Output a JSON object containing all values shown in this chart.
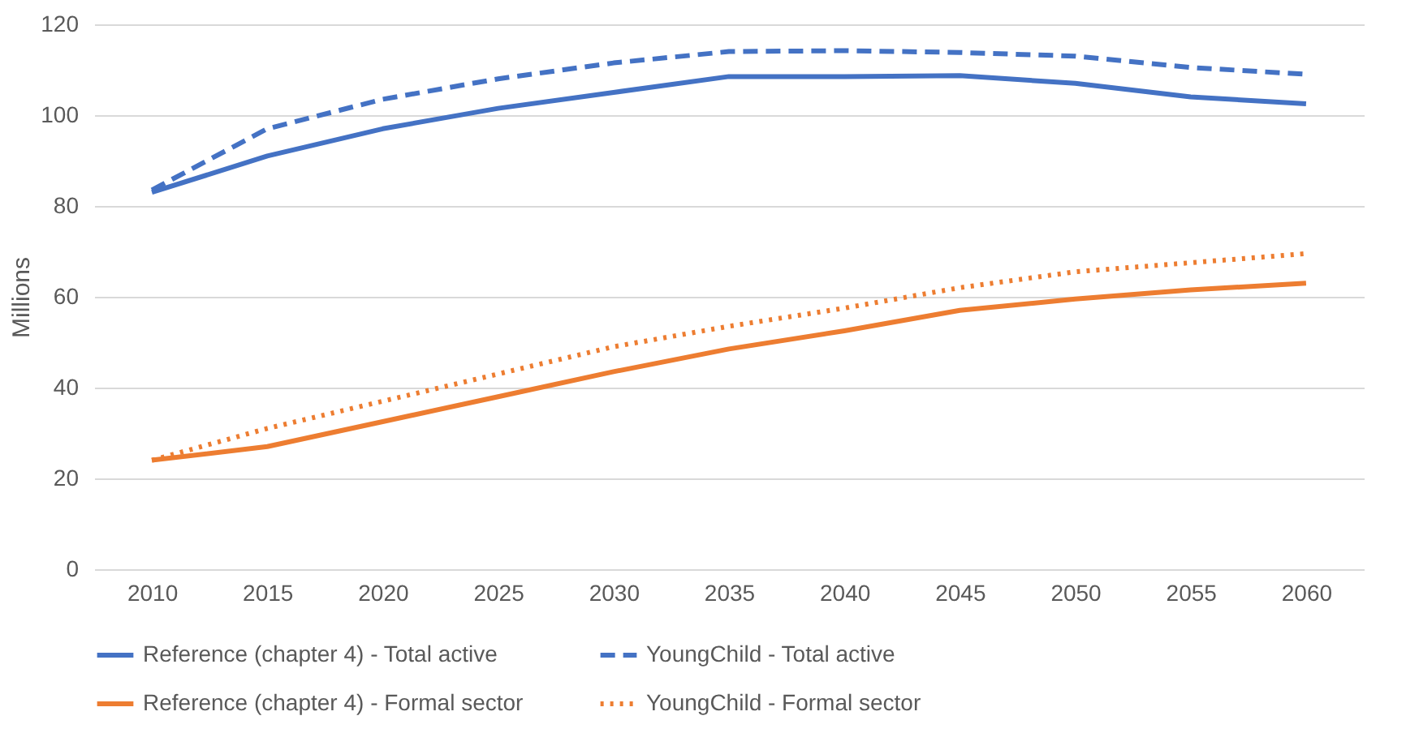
{
  "chart_data": {
    "type": "line",
    "ylabel": "Millions",
    "categories": [
      "2010",
      "2015",
      "2020",
      "2025",
      "2030",
      "2035",
      "2040",
      "2045",
      "2050",
      "2055",
      "2060"
    ],
    "series": [
      {
        "name": "Reference (chapter 4) - Total active",
        "color": "#4472c4",
        "line_style": "solid",
        "values": [
          83,
          91,
          97,
          101.5,
          105,
          108.5,
          108.5,
          108.7,
          107,
          104,
          102.5
        ]
      },
      {
        "name": "YoungChild - Total active",
        "color": "#4472c4",
        "line_style": "dashed",
        "values": [
          83.5,
          97,
          103.5,
          108,
          111.5,
          114,
          114.2,
          113.8,
          113,
          110.5,
          109
        ]
      },
      {
        "name": "Reference (chapter 4) - Formal sector",
        "color": "#ed7d31",
        "line_style": "solid",
        "values": [
          24,
          27,
          32.5,
          38,
          43.5,
          48.5,
          52.5,
          57,
          59.5,
          61.5,
          63
        ]
      },
      {
        "name": "YoungChild - Formal sector",
        "color": "#ed7d31",
        "line_style": "dotted",
        "values": [
          24,
          31,
          37,
          43,
          49,
          53.5,
          57.5,
          62,
          65.5,
          67.5,
          69.5
        ]
      }
    ],
    "ylim": [
      0,
      120
    ],
    "yticks": [
      0,
      20,
      40,
      60,
      80,
      100,
      120
    ],
    "grid": "y",
    "legend": "bottom",
    "marker": "none"
  }
}
